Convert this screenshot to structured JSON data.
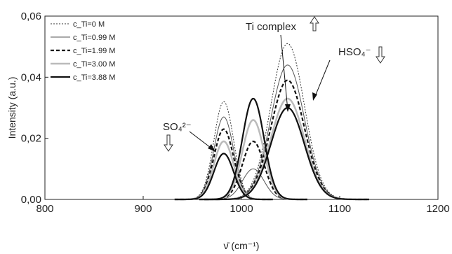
{
  "chart_data": {
    "type": "line",
    "xlabel": "ν̄ (cm⁻¹)",
    "ylabel": "Intensity (a.u.)",
    "xlim": [
      800,
      1200
    ],
    "ylim": [
      0,
      0.06
    ],
    "x_ticks": [
      "800",
      "900",
      "1000",
      "1100",
      "1200"
    ],
    "y_ticks": [
      "0,00",
      "0,02",
      "0,04",
      "0,06"
    ],
    "x_tick_values": [
      800,
      900,
      1000,
      1100,
      1200
    ],
    "y_tick_values": [
      0,
      0.02,
      0.04,
      0.06
    ],
    "grid": false,
    "legend_position": "top-left",
    "series": [
      {
        "name": "c_Ti=0 M",
        "style": "dotted",
        "color": "#333333",
        "components": [
          {
            "center": 982,
            "height": 0.032,
            "width": 10
          },
          {
            "center": 1047,
            "height": 0.051,
            "width": 17
          }
        ]
      },
      {
        "name": "c_Ti=0.99 M",
        "style": "thin",
        "color": "#555555",
        "components": [
          {
            "center": 982,
            "height": 0.027,
            "width": 10
          },
          {
            "center": 1012,
            "height": 0.01,
            "width": 11
          },
          {
            "center": 1047,
            "height": 0.044,
            "width": 17
          }
        ]
      },
      {
        "name": "c_Ti=1.99 M",
        "style": "dashed",
        "color": "#111111",
        "components": [
          {
            "center": 982,
            "height": 0.023,
            "width": 10
          },
          {
            "center": 1012,
            "height": 0.019,
            "width": 11
          },
          {
            "center": 1047,
            "height": 0.039,
            "width": 17
          }
        ]
      },
      {
        "name": "c_Ti=3.00 M",
        "style": "gray",
        "color": "#bbbbbb",
        "components": [
          {
            "center": 982,
            "height": 0.019,
            "width": 10
          },
          {
            "center": 1012,
            "height": 0.026,
            "width": 11
          },
          {
            "center": 1047,
            "height": 0.033,
            "width": 17
          }
        ]
      },
      {
        "name": "c_Ti=3.88 M",
        "style": "thick",
        "color": "#111111",
        "components": [
          {
            "center": 982,
            "height": 0.015,
            "width": 10
          },
          {
            "center": 1012,
            "height": 0.033,
            "width": 11
          },
          {
            "center": 1047,
            "height": 0.03,
            "width": 17
          }
        ]
      }
    ],
    "annotations": [
      {
        "text": "Ti complex",
        "arrow": "up"
      },
      {
        "text": "HSO₄⁻",
        "arrow": "down"
      },
      {
        "text": "SO₄²⁻",
        "arrow": "down"
      }
    ]
  }
}
